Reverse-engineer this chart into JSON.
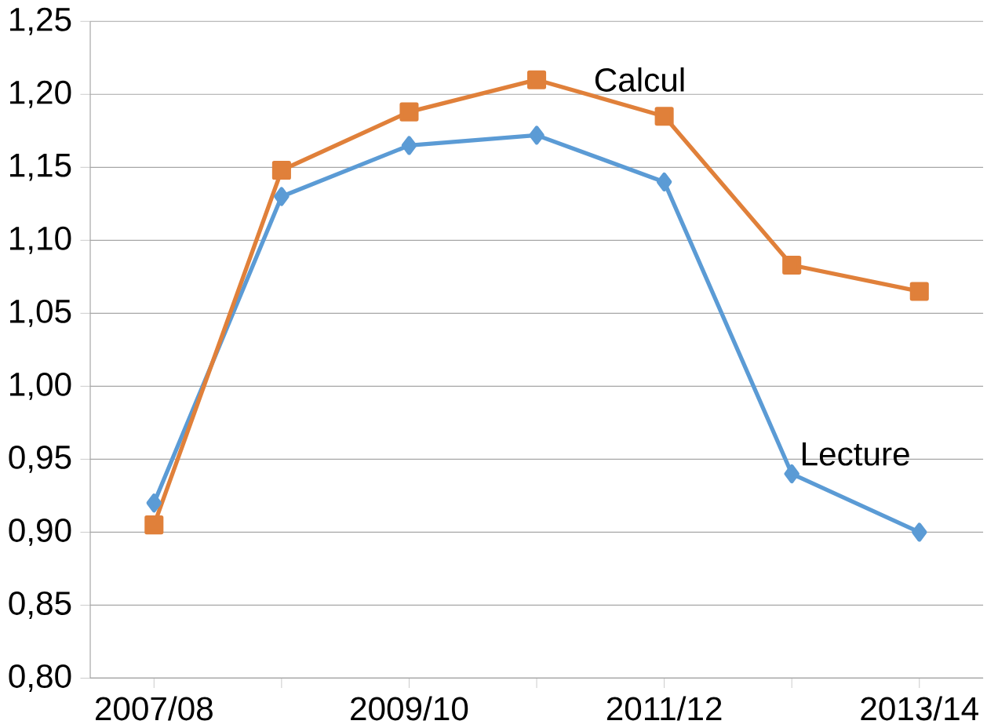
{
  "chart_data": {
    "type": "line",
    "categories": [
      "2007/08",
      null,
      "2009/10",
      null,
      "2011/12",
      null,
      "2013/14"
    ],
    "series": [
      {
        "name": "Lecture",
        "color": "#5b9bd5",
        "marker": "diamond",
        "values": [
          0.92,
          1.13,
          1.165,
          1.172,
          1.14,
          0.94,
          0.9
        ]
      },
      {
        "name": "Calcul",
        "color": "#e0803a",
        "marker": "square",
        "values": [
          0.905,
          1.148,
          1.188,
          1.21,
          1.185,
          1.083,
          1.065
        ]
      }
    ],
    "ylim": [
      0.8,
      1.25
    ],
    "yticks": [
      {
        "value": 0.8,
        "label": "0,80"
      },
      {
        "value": 0.85,
        "label": "0,85"
      },
      {
        "value": 0.9,
        "label": "0,90"
      },
      {
        "value": 0.95,
        "label": "0,95"
      },
      {
        "value": 1.0,
        "label": "1,00"
      },
      {
        "value": 1.05,
        "label": "1,05"
      },
      {
        "value": 1.1,
        "label": "1,10"
      },
      {
        "value": 1.15,
        "label": "1,15"
      },
      {
        "value": 1.2,
        "label": "1,20"
      },
      {
        "value": 1.25,
        "label": "1,25"
      }
    ],
    "grid": "y",
    "legend": false
  }
}
